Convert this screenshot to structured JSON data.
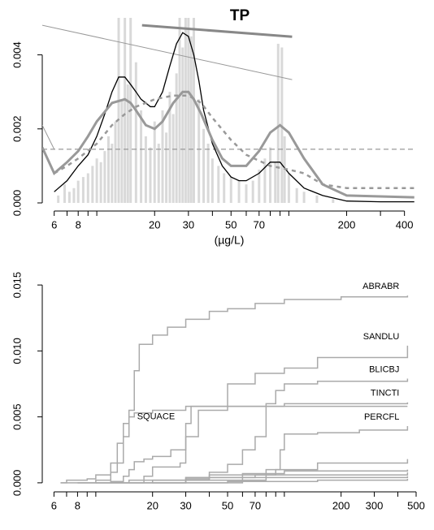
{
  "chart_data": [
    {
      "type": "line",
      "title": "TP",
      "x_label": "(µg/L)",
      "log_x": true,
      "xlim": [
        5.2,
        460
      ],
      "ylim": [
        -0.00011,
        0.005
      ],
      "xticks": [
        6,
        8,
        20,
        30,
        50,
        70,
        200,
        400
      ],
      "xminorticks": [
        7,
        9,
        10,
        40,
        60,
        80,
        90,
        100,
        300
      ],
      "yticks": [
        {
          "value": 0,
          "label": "0.000"
        },
        {
          "value": 0.002,
          "label": "0.002"
        },
        {
          "value": 0.004,
          "label": "0.004"
        }
      ],
      "bars": {
        "color": "#d9d9d9",
        "x": [
          6.3,
          6.8,
          7.2,
          7.6,
          8,
          8.5,
          9,
          9.5,
          10,
          10.5,
          11,
          11.5,
          12,
          12.5,
          13,
          13.5,
          14,
          14.5,
          15,
          16,
          17,
          18,
          19,
          20,
          21,
          22,
          23,
          24,
          25,
          26,
          27,
          28,
          29,
          30,
          31,
          32,
          34,
          36,
          38,
          40,
          43,
          46,
          50,
          55,
          60,
          65,
          70,
          75,
          80,
          85,
          88,
          92,
          95,
          100,
          110,
          120,
          140,
          170
        ],
        "values": [
          0.0002,
          0.0005,
          0.0003,
          0.0004,
          0.0006,
          0.0007,
          0.0008,
          0.001,
          0.0012,
          0.0011,
          0.0014,
          0.0018,
          0.0016,
          0.0022,
          0.005,
          0.0028,
          0.005,
          0.0032,
          0.005,
          0.0038,
          0.0025,
          0.0018,
          0.0015,
          0.0022,
          0.0016,
          0.0025,
          0.0019,
          0.003,
          0.0024,
          0.0035,
          0.005,
          0.0042,
          0.005,
          0.005,
          0.0045,
          0.005,
          0.0028,
          0.002,
          0.0016,
          0.0012,
          0.001,
          0.0008,
          0.0007,
          0.0006,
          0.0005,
          0.0006,
          0.0009,
          0.0012,
          0.0015,
          0.0011,
          0.0043,
          0.0042,
          0.0018,
          0.0008,
          0.0004,
          0.0003,
          0.0002,
          0.0001
        ]
      },
      "reference_line": {
        "value": 0.00145,
        "color": "#999999"
      },
      "series": [
        {
          "color": "#999999",
          "width": 1,
          "x": [
            5.2,
            6
          ],
          "values": [
            0.0021,
            0.00145
          ]
        },
        {
          "color": "#888888",
          "width": 3,
          "x": [
            17.2,
            104
          ],
          "values": [
            0.0048,
            0.00449
          ]
        },
        {
          "color": "#999999",
          "width": 1,
          "x": [
            5.2,
            104
          ],
          "values": [
            0.0048,
            0.00333
          ]
        },
        {
          "color": "#000000",
          "width": 1.3,
          "x": [
            6,
            7,
            8,
            9,
            10,
            11,
            12,
            13,
            14,
            15,
            16,
            17,
            18,
            19,
            20,
            22,
            24,
            26,
            28,
            30,
            32,
            34,
            36,
            40,
            45,
            50,
            55,
            60,
            70,
            80,
            90,
            100,
            120,
            150,
            200,
            300,
            450
          ],
          "values": [
            0.0003,
            0.0006,
            0.001,
            0.0013,
            0.0018,
            0.0024,
            0.003,
            0.0034,
            0.0034,
            0.0032,
            0.003,
            0.0028,
            0.0027,
            0.0026,
            0.0026,
            0.003,
            0.0037,
            0.0043,
            0.0046,
            0.0045,
            0.004,
            0.0033,
            0.0025,
            0.0016,
            0.001,
            0.0007,
            0.0006,
            0.0006,
            0.0008,
            0.0011,
            0.0011,
            0.0008,
            0.0004,
            0.0002,
            5e-05,
            3e-05,
            3e-05
          ]
        },
        {
          "color": "#999999",
          "width": 3,
          "x": [
            5.2,
            6,
            7,
            8,
            9,
            10,
            12,
            14,
            15,
            16,
            18,
            20,
            22,
            25,
            28,
            30,
            32,
            35,
            40,
            45,
            50,
            60,
            70,
            80,
            90,
            100,
            120,
            150,
            200,
            450
          ],
          "values": [
            0.0015,
            0.0008,
            0.0011,
            0.0014,
            0.0018,
            0.0022,
            0.0027,
            0.0028,
            0.0027,
            0.0025,
            0.0021,
            0.002,
            0.0022,
            0.0027,
            0.003,
            0.003,
            0.0028,
            0.0024,
            0.0017,
            0.0012,
            0.001,
            0.001,
            0.0014,
            0.0019,
            0.0021,
            0.0019,
            0.0012,
            0.0005,
            0.0002,
            0.00015
          ]
        },
        {
          "color": "#999999",
          "width": 2.5,
          "dashed": true,
          "x": [
            6,
            7,
            8,
            10,
            12,
            14,
            16,
            18,
            20,
            25,
            30,
            35,
            40,
            50,
            60,
            80,
            100,
            120,
            150,
            200,
            450
          ],
          "values": [
            0.0008,
            0.001,
            0.0012,
            0.0016,
            0.0021,
            0.0024,
            0.0026,
            0.0027,
            0.0028,
            0.0029,
            0.0029,
            0.0027,
            0.0023,
            0.0017,
            0.0013,
            0.001,
            0.0009,
            0.0008,
            0.0005,
            0.0004,
            0.0004
          ]
        }
      ]
    },
    {
      "type": "step",
      "log_x": true,
      "xlim": [
        5.2,
        500
      ],
      "ylim": [
        -0.0005,
        0.0155
      ],
      "xticks": [
        6,
        8,
        20,
        30,
        50,
        70,
        200,
        300,
        500
      ],
      "xminorticks": [
        7,
        9,
        10,
        40,
        60,
        80,
        90,
        100,
        400
      ],
      "yticks": [
        {
          "value": 0,
          "label": "0.000"
        },
        {
          "value": 0.005,
          "label": "0.005"
        },
        {
          "value": 0.01,
          "label": "0.010"
        },
        {
          "value": 0.015,
          "label": "0.015"
        }
      ],
      "series": [
        {
          "name": "ABRABR",
          "color": "#aaaaaa",
          "x": [
            6.5,
            7,
            9,
            10,
            12,
            13,
            14,
            15,
            16,
            17,
            20,
            24,
            30,
            40,
            50,
            70,
            100,
            200,
            450
          ],
          "values": [
            0,
            0.0002,
            0.0003,
            0.0006,
            0.0015,
            0.003,
            0.0045,
            0.0055,
            0.0085,
            0.0105,
            0.0112,
            0.0118,
            0.0124,
            0.013,
            0.0132,
            0.0136,
            0.0139,
            0.0141,
            0.0142
          ]
        },
        {
          "name": "SANDLU",
          "color": "#aaaaaa",
          "x": [
            10,
            12,
            14,
            15,
            16,
            18,
            20,
            25,
            30,
            35,
            50,
            70,
            100,
            150,
            450
          ],
          "values": [
            0,
            0.0001,
            0.0005,
            0.001,
            0.0016,
            0.0018,
            0.002,
            0.0025,
            0.0035,
            0.0055,
            0.0075,
            0.0083,
            0.0087,
            0.0095,
            0.0104
          ]
        },
        {
          "name": "BLICBJ",
          "color": "#aaaaaa",
          "x": [
            20,
            30,
            40,
            50,
            60,
            70,
            80,
            90,
            100,
            150,
            450
          ],
          "values": [
            0,
            0.0003,
            0.0008,
            0.0014,
            0.0025,
            0.0035,
            0.006,
            0.007,
            0.0075,
            0.0077,
            0.0079
          ]
        },
        {
          "name": "TINCTI",
          "color": "#aaaaaa",
          "x": [
            15,
            18,
            20,
            28,
            30,
            32,
            100,
            450
          ],
          "values": [
            0,
            0.0005,
            0.0012,
            0.0015,
            0.0045,
            0.0058,
            0.006,
            0.0061
          ]
        },
        {
          "name": "PERCFL",
          "color": "#aaaaaa",
          "x": [
            30,
            60,
            80,
            90,
            95,
            100,
            150,
            250,
            450
          ],
          "values": [
            0,
            0.0004,
            0.0006,
            0.001,
            0.0025,
            0.0037,
            0.0038,
            0.004,
            0.0043
          ]
        },
        {
          "name": "SQUACE",
          "color": "#aaaaaa",
          "x": [
            8,
            10,
            12,
            13,
            14,
            15,
            16,
            20,
            30,
            450
          ],
          "values": [
            0,
            0.0002,
            0.0008,
            0.0015,
            0.0035,
            0.005,
            0.0053,
            0.0055,
            0.0058,
            0.0058
          ]
        },
        {
          "color": "#aaaaaa",
          "x": [
            8,
            20,
            40,
            80,
            150,
            450
          ],
          "values": [
            0,
            0.0002,
            0.0006,
            0.001,
            0.0015,
            0.0018
          ]
        },
        {
          "color": "#aaaaaa",
          "x": [
            10,
            30,
            60,
            100,
            450
          ],
          "values": [
            0,
            0.0004,
            0.0007,
            0.0009,
            0.001
          ]
        },
        {
          "color": "#aaaaaa",
          "x": [
            6.5,
            15,
            30,
            70,
            450
          ],
          "values": [
            0,
            0.0002,
            0.0004,
            0.0006,
            0.0008
          ]
        },
        {
          "color": "#aaaaaa",
          "x": [
            12,
            30,
            80,
            450
          ],
          "values": [
            0,
            0.0002,
            0.0004,
            0.0005
          ]
        },
        {
          "color": "#aaaaaa",
          "x": [
            20,
            50,
            150,
            450
          ],
          "values": [
            0,
            0.0001,
            0.0002,
            0.0003
          ]
        }
      ]
    }
  ]
}
